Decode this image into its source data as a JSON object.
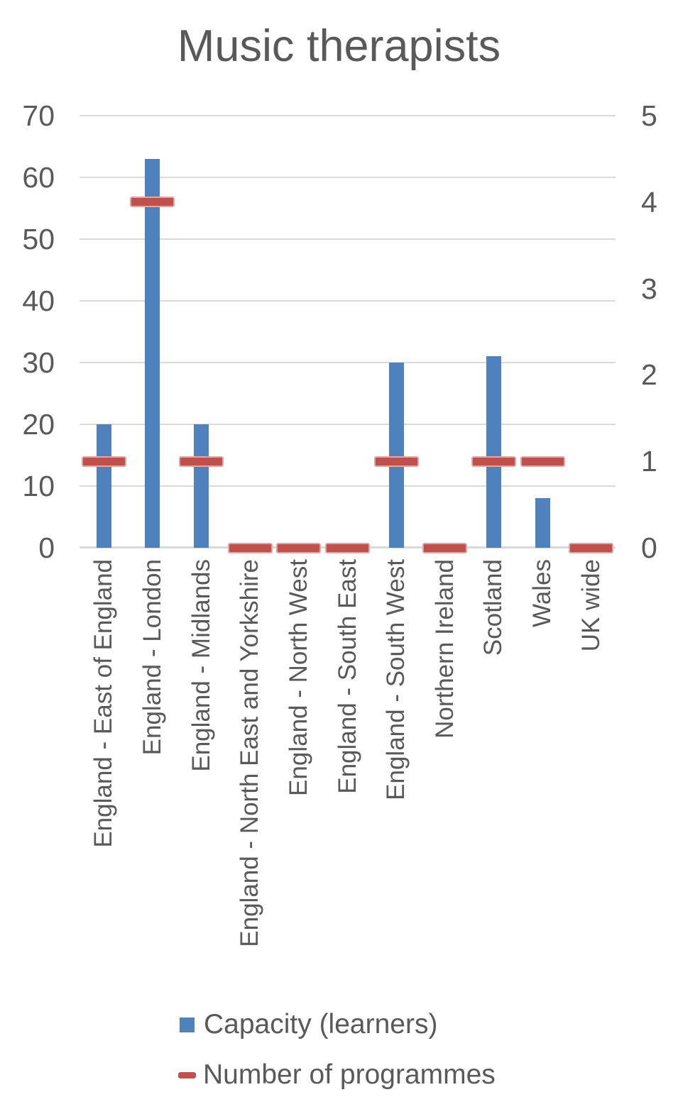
{
  "chart_data": {
    "type": "bar",
    "title": "Music therapists",
    "categories": [
      "England - East of England",
      "England - London",
      "England - Midlands",
      "England - North East and Yorkshire",
      "England - North West",
      "England - South East",
      "England - South West",
      "Northern Ireland",
      "Scotland",
      "Wales",
      "UK wide"
    ],
    "series": [
      {
        "name": "Capacity (learners)",
        "type": "bar",
        "axis": "left",
        "color": "#4F81BD",
        "values": [
          20,
          63,
          20,
          0,
          0,
          0,
          30,
          0,
          31,
          8,
          0
        ]
      },
      {
        "name": "Number of programmes",
        "type": "dash",
        "axis": "right",
        "color": "#C0504D",
        "values": [
          1,
          4,
          1,
          0,
          0,
          0,
          1,
          0,
          1,
          1,
          0
        ]
      }
    ],
    "left_axis": {
      "min": 0,
      "max": 70,
      "ticks": [
        0,
        10,
        20,
        30,
        40,
        50,
        60,
        70
      ]
    },
    "right_axis": {
      "min": 0,
      "max": 5,
      "ticks": [
        0,
        1,
        2,
        3,
        4,
        5
      ]
    },
    "grid": true,
    "legend_position": "bottom-left",
    "legend": [
      {
        "label": "Capacity (learners)",
        "marker": "square",
        "color": "#4F81BD"
      },
      {
        "label": "Number of programmes",
        "marker": "dash",
        "color": "#C0504D"
      }
    ]
  },
  "colors": {
    "bar_blue": "#4F81BD",
    "dash_red": "#C0504D",
    "dash_edge": "#DFA6A2",
    "text_gray": "#595959",
    "gridline": "#D9D9D9",
    "background": "#FFFFFF"
  }
}
